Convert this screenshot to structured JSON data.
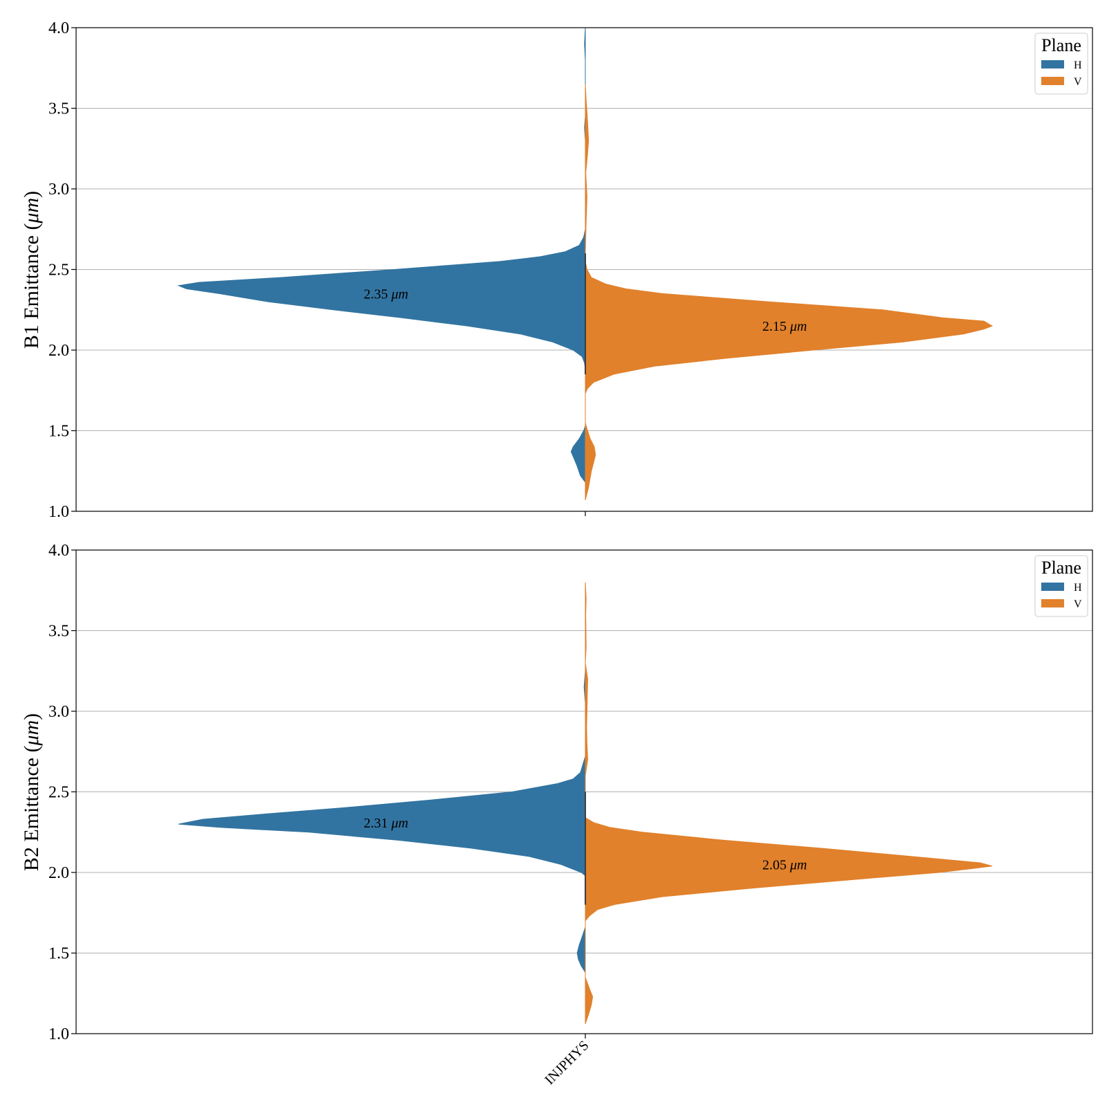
{
  "chart_data": [
    {
      "type": "violin",
      "ylabel_prefix": "B1 Emittance (",
      "ylabel_unit": "μm",
      "ylabel_suffix": ")",
      "ylim": [
        1.0,
        4.0
      ],
      "yticks": [
        "1.0",
        "1.5",
        "2.0",
        "2.5",
        "3.0",
        "3.5",
        "4.0"
      ],
      "ytick_values": [
        1.0,
        1.5,
        2.0,
        2.5,
        3.0,
        3.5,
        4.0
      ],
      "grid": "horizontal",
      "category": "INJPHYS",
      "split": true,
      "legend": {
        "title": "Plane",
        "placement": "top-right",
        "entries": [
          "H",
          "V"
        ]
      },
      "series": [
        {
          "name": "H",
          "color": "#3274a1",
          "annotation_value": "2.35",
          "annotation_unit": "μm",
          "annotation_y": 2.35,
          "profile": [
            [
              1.18,
              0.0
            ],
            [
              1.22,
              0.012
            ],
            [
              1.28,
              0.02
            ],
            [
              1.34,
              0.03
            ],
            [
              1.37,
              0.035
            ],
            [
              1.4,
              0.03
            ],
            [
              1.45,
              0.015
            ],
            [
              1.5,
              0.004
            ],
            [
              1.53,
              0.0
            ],
            [
              1.88,
              0.0
            ],
            [
              1.92,
              0.002
            ],
            [
              1.96,
              0.008
            ],
            [
              2.0,
              0.03
            ],
            [
              2.05,
              0.08
            ],
            [
              2.1,
              0.16
            ],
            [
              2.15,
              0.29
            ],
            [
              2.2,
              0.45
            ],
            [
              2.25,
              0.62
            ],
            [
              2.3,
              0.78
            ],
            [
              2.35,
              0.9
            ],
            [
              2.38,
              0.98
            ],
            [
              2.4,
              1.0
            ],
            [
              2.42,
              0.95
            ],
            [
              2.45,
              0.75
            ],
            [
              2.5,
              0.47
            ],
            [
              2.55,
              0.21
            ],
            [
              2.58,
              0.11
            ],
            [
              2.61,
              0.05
            ],
            [
              2.65,
              0.015
            ],
            [
              2.7,
              0.004
            ],
            [
              2.75,
              0.0
            ],
            [
              3.3,
              0.0
            ],
            [
              3.38,
              0.002
            ],
            [
              3.45,
              0.0
            ],
            [
              3.8,
              0.0
            ],
            [
              3.9,
              0.002
            ],
            [
              4.0,
              0.0
            ]
          ]
        },
        {
          "name": "V",
          "color": "#e1812c",
          "annotation_value": "2.15",
          "annotation_unit": "μm",
          "annotation_y": 2.15,
          "profile": [
            [
              1.07,
              0.0
            ],
            [
              1.15,
              0.008
            ],
            [
              1.25,
              0.015
            ],
            [
              1.3,
              0.02
            ],
            [
              1.35,
              0.025
            ],
            [
              1.4,
              0.022
            ],
            [
              1.45,
              0.012
            ],
            [
              1.52,
              0.003
            ],
            [
              1.55,
              0.0
            ],
            [
              1.73,
              0.0
            ],
            [
              1.76,
              0.005
            ],
            [
              1.8,
              0.02
            ],
            [
              1.85,
              0.07
            ],
            [
              1.9,
              0.17
            ],
            [
              1.95,
              0.35
            ],
            [
              2.0,
              0.56
            ],
            [
              2.05,
              0.78
            ],
            [
              2.1,
              0.93
            ],
            [
              2.13,
              0.98
            ],
            [
              2.15,
              1.0
            ],
            [
              2.18,
              0.98
            ],
            [
              2.2,
              0.88
            ],
            [
              2.25,
              0.73
            ],
            [
              2.3,
              0.45
            ],
            [
              2.35,
              0.19
            ],
            [
              2.38,
              0.1
            ],
            [
              2.41,
              0.05
            ],
            [
              2.45,
              0.015
            ],
            [
              2.5,
              0.004
            ],
            [
              2.55,
              0.0
            ],
            [
              2.6,
              0.0
            ],
            [
              2.8,
              0.002
            ],
            [
              2.95,
              0.004
            ],
            [
              3.1,
              0.001
            ],
            [
              3.2,
              0.005
            ],
            [
              3.3,
              0.008
            ],
            [
              3.4,
              0.006
            ],
            [
              3.55,
              0.002
            ],
            [
              3.65,
              0.0
            ]
          ]
        }
      ]
    },
    {
      "type": "violin",
      "ylabel_prefix": "B2 Emittance (",
      "ylabel_unit": "μm",
      "ylabel_suffix": ")",
      "ylim": [
        1.0,
        4.0
      ],
      "yticks": [
        "1.0",
        "1.5",
        "2.0",
        "2.5",
        "3.0",
        "3.5",
        "4.0"
      ],
      "ytick_values": [
        1.0,
        1.5,
        2.0,
        2.5,
        3.0,
        3.5,
        4.0
      ],
      "grid": "horizontal",
      "category": "INJPHYS",
      "split": true,
      "legend": {
        "title": "Plane",
        "placement": "top-right",
        "entries": [
          "H",
          "V"
        ]
      },
      "series": [
        {
          "name": "H",
          "color": "#3274a1",
          "annotation_value": "2.31",
          "annotation_unit": "μm",
          "annotation_y": 2.31,
          "profile": [
            [
              1.38,
              0.0
            ],
            [
              1.42,
              0.01
            ],
            [
              1.46,
              0.017
            ],
            [
              1.5,
              0.02
            ],
            [
              1.55,
              0.015
            ],
            [
              1.6,
              0.008
            ],
            [
              1.66,
              0.0
            ],
            [
              1.98,
              0.0
            ],
            [
              2.0,
              0.01
            ],
            [
              2.05,
              0.06
            ],
            [
              2.1,
              0.14
            ],
            [
              2.15,
              0.28
            ],
            [
              2.2,
              0.46
            ],
            [
              2.25,
              0.68
            ],
            [
              2.28,
              0.9
            ],
            [
              2.3,
              1.0
            ],
            [
              2.33,
              0.94
            ],
            [
              2.36,
              0.8
            ],
            [
              2.4,
              0.6
            ],
            [
              2.45,
              0.38
            ],
            [
              2.5,
              0.18
            ],
            [
              2.55,
              0.07
            ],
            [
              2.58,
              0.03
            ],
            [
              2.62,
              0.012
            ],
            [
              2.68,
              0.005
            ],
            [
              2.72,
              0.0
            ],
            [
              3.05,
              0.0
            ],
            [
              3.15,
              0.003
            ],
            [
              3.25,
              0.0
            ]
          ]
        },
        {
          "name": "V",
          "color": "#e1812c",
          "annotation_value": "2.05",
          "annotation_unit": "μm",
          "annotation_y": 2.05,
          "profile": [
            [
              1.06,
              0.0
            ],
            [
              1.12,
              0.008
            ],
            [
              1.18,
              0.015
            ],
            [
              1.23,
              0.018
            ],
            [
              1.28,
              0.01
            ],
            [
              1.35,
              0.0
            ],
            [
              1.7,
              0.0
            ],
            [
              1.73,
              0.01
            ],
            [
              1.77,
              0.03
            ],
            [
              1.8,
              0.07
            ],
            [
              1.85,
              0.19
            ],
            [
              1.9,
              0.4
            ],
            [
              1.95,
              0.63
            ],
            [
              2.0,
              0.87
            ],
            [
              2.03,
              0.97
            ],
            [
              2.04,
              1.0
            ],
            [
              2.06,
              0.97
            ],
            [
              2.1,
              0.8
            ],
            [
              2.15,
              0.58
            ],
            [
              2.2,
              0.34
            ],
            [
              2.25,
              0.14
            ],
            [
              2.28,
              0.06
            ],
            [
              2.31,
              0.02
            ],
            [
              2.34,
              0.0
            ],
            [
              2.6,
              0.0
            ],
            [
              2.7,
              0.006
            ],
            [
              2.8,
              0.004
            ],
            [
              2.9,
              0.003
            ],
            [
              3.0,
              0.004
            ],
            [
              3.1,
              0.005
            ],
            [
              3.2,
              0.006
            ],
            [
              3.3,
              0.0
            ],
            [
              3.4,
              0.002
            ],
            [
              3.6,
              0.001
            ],
            [
              3.7,
              0.002
            ],
            [
              3.8,
              0.0
            ]
          ]
        }
      ]
    }
  ]
}
